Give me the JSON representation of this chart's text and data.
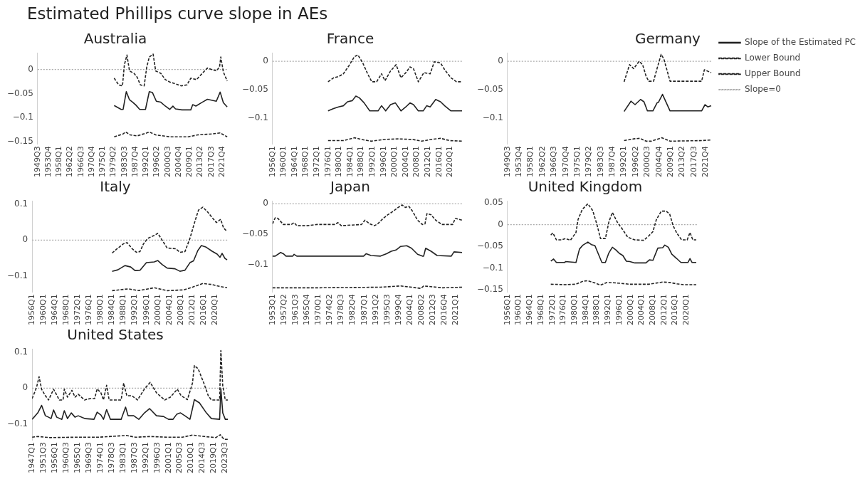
{
  "chart_data": [
    {
      "type": "line",
      "title": "Australia",
      "annotations": [
        "Estimated Phillips curve slope in AEs"
      ],
      "xlim": [
        "1949-07",
        "2024-01"
      ],
      "ylim": [
        -0.155,
        0.035
      ],
      "yticks": [
        0,
        -0.05,
        -0.1,
        -0.15
      ],
      "xticks": [
        {
          "value": "1949-07",
          "label": "1949Q3"
        },
        {
          "value": "1953-10",
          "label": "1953Q4"
        },
        {
          "value": "1958-01",
          "label": "1958Q1"
        },
        {
          "value": "1962-04",
          "label": "1962Q2"
        },
        {
          "value": "1966-07",
          "label": "1966Q3"
        },
        {
          "value": "1970-10",
          "label": "1970Q4"
        },
        {
          "value": "1975-01",
          "label": "1975Q1"
        },
        {
          "value": "1979-04",
          "label": "1979Q2"
        },
        {
          "value": "1983-07",
          "label": "1983Q3"
        },
        {
          "value": "1987-10",
          "label": "1987Q4"
        },
        {
          "value": "1992-01",
          "label": "1992Q1"
        },
        {
          "value": "1996-04",
          "label": "1996Q2"
        },
        {
          "value": "2000-07",
          "label": "2000Q3"
        },
        {
          "value": "2004-10",
          "label": "2004Q4"
        },
        {
          "value": "2009-01",
          "label": "2009Q1"
        },
        {
          "value": "2013-04",
          "label": "2013Q2"
        },
        {
          "value": "2017-07",
          "label": "2017Q3"
        },
        {
          "value": "2021-10",
          "label": "2021Q4"
        }
      ],
      "ref_lines": [
        {
          "axis": "y",
          "value": 0,
          "color": "#aaaaaa",
          "line_style": "dotted"
        }
      ],
      "series": [
        {
          "color": "#222222",
          "line_style": "solid",
          "x": [
            "1979-07",
            "1982-04",
            "1983-01",
            "1984-04",
            "1985-07",
            "1986-10",
            "1988-01",
            "1989-07",
            "1991-10",
            "1993-04",
            "1994-07",
            "1996-01",
            "1997-10",
            "1999-07",
            "2001-04",
            "2002-07",
            "2003-07",
            "2006-01",
            "2009-07",
            "2010-04",
            "2011-07",
            "2014-01",
            "2016-01",
            "2019-07",
            "2021-01",
            "2022-04",
            "2023-10"
          ],
          "values": [
            -0.075,
            -0.083,
            -0.083,
            -0.046,
            -0.063,
            -0.068,
            -0.074,
            -0.083,
            -0.083,
            -0.046,
            -0.048,
            -0.066,
            -0.068,
            -0.076,
            -0.083,
            -0.076,
            -0.082,
            -0.084,
            -0.084,
            -0.073,
            -0.076,
            -0.068,
            -0.062,
            -0.066,
            -0.047,
            -0.069,
            -0.078
          ]
        },
        {
          "color": "#222222",
          "line_style": "dashed",
          "x": [
            "1979-07",
            "1983-01",
            "1984-01",
            "1985-10",
            "1988-07",
            "1992-04",
            "1993-04",
            "1995-10",
            "2001-04",
            "2008-07",
            "2012-04",
            "2017-10",
            "2021-01",
            "2023-10"
          ],
          "values": [
            -0.14,
            -0.134,
            -0.13,
            -0.136,
            -0.138,
            -0.132,
            -0.13,
            -0.136,
            -0.14,
            -0.14,
            -0.136,
            -0.134,
            -0.132,
            -0.14
          ]
        },
        {
          "color": "#222222",
          "line_style": "dashed",
          "x": [
            "1979-07",
            "1981-04",
            "1982-10",
            "1983-07",
            "1984-07",
            "1985-07",
            "1987-04",
            "1988-07",
            "1989-10",
            "1991-04",
            "1992-04",
            "1993-04",
            "1994-10",
            "1995-10",
            "1997-10",
            "1999-07",
            "2001-04",
            "2003-01",
            "2005-10",
            "2008-01",
            "2009-07",
            "2011-10",
            "2014-01",
            "2016-01",
            "2017-10",
            "2019-07",
            "2020-10",
            "2021-04",
            "2022-04",
            "2023-10"
          ],
          "values": [
            -0.018,
            -0.032,
            -0.034,
            0.01,
            0.03,
            -0.003,
            -0.008,
            -0.016,
            -0.032,
            -0.034,
            0.005,
            0.026,
            0.032,
            -0.003,
            -0.008,
            -0.021,
            -0.026,
            -0.029,
            -0.034,
            -0.032,
            -0.018,
            -0.021,
            -0.008,
            0.003,
            0,
            -0.003,
            0.005,
            0.026,
            -0.005,
            -0.024
          ]
        }
      ]
    },
    {
      "type": "line",
      "title": "France",
      "xlim": [
        "1956-01",
        "2024-07"
      ],
      "ylim": [
        -0.145,
        0.015
      ],
      "yticks": [
        0,
        -0.05,
        -0.1
      ],
      "xticks": [
        {
          "value": "1956-01",
          "label": "1956Q1"
        },
        {
          "value": "1960-01",
          "label": "1960Q1"
        },
        {
          "value": "1964-01",
          "label": "1964Q1"
        },
        {
          "value": "1968-01",
          "label": "1968Q1"
        },
        {
          "value": "1972-01",
          "label": "1972Q1"
        },
        {
          "value": "1976-01",
          "label": "1976Q1"
        },
        {
          "value": "1980-01",
          "label": "1980Q1"
        },
        {
          "value": "1984-01",
          "label": "1984Q1"
        },
        {
          "value": "1988-01",
          "label": "1988Q1"
        },
        {
          "value": "1992-01",
          "label": "1992Q1"
        },
        {
          "value": "1996-01",
          "label": "1996Q1"
        },
        {
          "value": "2000-01",
          "label": "2000Q1"
        },
        {
          "value": "2004-01",
          "label": "2004Q1"
        },
        {
          "value": "2008-01",
          "label": "2008Q1"
        },
        {
          "value": "2012-01",
          "label": "2012Q1"
        },
        {
          "value": "2016-01",
          "label": "2016Q1"
        },
        {
          "value": "2020-01",
          "label": "2020Q1"
        }
      ],
      "ref_lines": [
        {
          "axis": "y",
          "value": 0,
          "color": "#aaaaaa",
          "line_style": "dotted"
        }
      ],
      "series": [
        {
          "color": "#222222",
          "line_style": "solid",
          "x": [
            "1976-01",
            "1978-01",
            "1979-10",
            "1981-07",
            "1983-01",
            "1984-10",
            "1986-01",
            "1987-04",
            "1989-01",
            "1991-01",
            "1994-01",
            "1995-04",
            "1996-10",
            "1998-07",
            "2000-04",
            "2002-04",
            "2004-01",
            "2005-07",
            "2006-10",
            "2008-07",
            "2010-04",
            "2011-07",
            "2012-10",
            "2014-10",
            "2016-07",
            "2018-01",
            "2020-04",
            "2024-04"
          ],
          "values": [
            -0.087,
            -0.083,
            -0.08,
            -0.078,
            -0.071,
            -0.069,
            -0.061,
            -0.064,
            -0.073,
            -0.087,
            -0.087,
            -0.078,
            -0.087,
            -0.076,
            -0.073,
            -0.087,
            -0.08,
            -0.073,
            -0.076,
            -0.087,
            -0.087,
            -0.078,
            -0.08,
            -0.067,
            -0.071,
            -0.078,
            -0.087,
            -0.087
          ]
        },
        {
          "color": "#222222",
          "line_style": "dashed",
          "x": [
            "1976-01",
            "1981-07",
            "1985-07",
            "1988-01",
            "1991-07",
            "1996-07",
            "2001-07",
            "2006-07",
            "2009-10",
            "2013-01",
            "2016-07",
            "2019-10",
            "2024-04"
          ],
          "values": [
            -0.139,
            -0.139,
            -0.134,
            -0.137,
            -0.14,
            -0.137,
            -0.136,
            -0.137,
            -0.14,
            -0.137,
            -0.135,
            -0.139,
            -0.14
          ]
        },
        {
          "color": "#222222",
          "line_style": "dashed",
          "x": [
            "1976-01",
            "1978-01",
            "1979-10",
            "1981-07",
            "1983-07",
            "1985-07",
            "1986-10",
            "1988-07",
            "1990-04",
            "1991-10",
            "1993-07",
            "1995-04",
            "1996-07",
            "1998-07",
            "2000-07",
            "2002-04",
            "2004-01",
            "2005-07",
            "2006-10",
            "2008-07",
            "2010-07",
            "2012-10",
            "2014-04",
            "2016-07",
            "2018-01",
            "2020-04",
            "2022-04",
            "2024-04"
          ],
          "values": [
            -0.036,
            -0.029,
            -0.027,
            -0.022,
            -0.008,
            0.008,
            0.011,
            -0.003,
            -0.022,
            -0.036,
            -0.036,
            -0.022,
            -0.034,
            -0.017,
            -0.006,
            -0.029,
            -0.02,
            -0.01,
            -0.013,
            -0.036,
            -0.02,
            -0.022,
            -0.001,
            -0.003,
            -0.015,
            -0.029,
            -0.036,
            -0.036
          ]
        }
      ]
    },
    {
      "type": "line",
      "title": "Germany",
      "legend": "right",
      "xlim": [
        "1949-07",
        "2024-01"
      ],
      "ylim": [
        -0.145,
        0.015
      ],
      "yticks": [
        0,
        -0.05,
        -0.1
      ],
      "xticks": [
        {
          "value": "1949-07",
          "label": "1949Q3"
        },
        {
          "value": "1953-10",
          "label": "1953Q4"
        },
        {
          "value": "1958-01",
          "label": "1958Q1"
        },
        {
          "value": "1962-04",
          "label": "1962Q2"
        },
        {
          "value": "1966-07",
          "label": "1966Q3"
        },
        {
          "value": "1970-10",
          "label": "1970Q4"
        },
        {
          "value": "1975-01",
          "label": "1975Q1"
        },
        {
          "value": "1979-04",
          "label": "1979Q2"
        },
        {
          "value": "1983-07",
          "label": "1983Q3"
        },
        {
          "value": "1987-10",
          "label": "1987Q4"
        },
        {
          "value": "1992-01",
          "label": "1992Q1"
        },
        {
          "value": "1996-04",
          "label": "1996Q2"
        },
        {
          "value": "2000-07",
          "label": "2000Q3"
        },
        {
          "value": "2004-10",
          "label": "2004Q4"
        },
        {
          "value": "2009-01",
          "label": "2009Q1"
        },
        {
          "value": "2013-04",
          "label": "2013Q2"
        },
        {
          "value": "2017-07",
          "label": "2017Q3"
        },
        {
          "value": "2021-10",
          "label": "2021Q4"
        }
      ],
      "ref_lines": [
        {
          "axis": "y",
          "value": 0,
          "label": "Slope=0",
          "color": "#aaaaaa",
          "line_style": "dotted"
        }
      ],
      "series": [
        {
          "name": "Slope of the Estimated PC",
          "color": "#222222",
          "line_style": "solid",
          "x": [
            "1992-01",
            "1994-07",
            "1996-01",
            "1998-01",
            "1999-04",
            "2000-07",
            "2002-07",
            "2004-01",
            "2004-07",
            "2006-01",
            "2008-10",
            "2020-04",
            "2021-07",
            "2022-07",
            "2023-10"
          ],
          "values": [
            -0.088,
            -0.07,
            -0.076,
            -0.067,
            -0.071,
            -0.087,
            -0.087,
            -0.073,
            -0.072,
            -0.058,
            -0.087,
            -0.087,
            -0.076,
            -0.08,
            -0.078
          ]
        },
        {
          "name": "Lower Bound",
          "color": "#222222",
          "line_style": "dashed",
          "x": [
            "1992-01",
            "1995-07",
            "1997-10",
            "2000-01",
            "2002-01",
            "2005-10",
            "2008-10",
            "2020-04",
            "2023-10"
          ],
          "values": [
            -0.139,
            -0.136,
            -0.135,
            -0.14,
            -0.14,
            -0.134,
            -0.14,
            -0.139,
            -0.138
          ]
        },
        {
          "name": "Upper Bound",
          "color": "#222222",
          "line_style": "dashed",
          "x": [
            "1992-01",
            "1994-01",
            "1995-07",
            "1997-07",
            "1998-10",
            "2000-01",
            "2001-01",
            "2002-10",
            "2004-01",
            "2005-07",
            "2006-07",
            "2008-10",
            "2020-04",
            "2021-04",
            "2023-10"
          ],
          "values": [
            -0.036,
            -0.006,
            -0.013,
            0,
            -0.006,
            -0.026,
            -0.035,
            -0.035,
            -0.013,
            0.012,
            0.004,
            -0.035,
            -0.035,
            -0.015,
            -0.02
          ]
        }
      ]
    },
    {
      "type": "line",
      "title": "Italy",
      "xlim": [
        "1956-01",
        "2024-07"
      ],
      "ylim": [
        -0.145,
        0.11
      ],
      "yticks": [
        0.1,
        0,
        -0.1
      ],
      "xticks": [
        {
          "value": "1956-01",
          "label": "1956Q1"
        },
        {
          "value": "1960-01",
          "label": "1960Q1"
        },
        {
          "value": "1964-01",
          "label": "1964Q1"
        },
        {
          "value": "1968-01",
          "label": "1968Q1"
        },
        {
          "value": "1972-01",
          "label": "1972Q1"
        },
        {
          "value": "1976-01",
          "label": "1976Q1"
        },
        {
          "value": "1980-01",
          "label": "1980Q1"
        },
        {
          "value": "1984-01",
          "label": "1984Q1"
        },
        {
          "value": "1988-01",
          "label": "1988Q1"
        },
        {
          "value": "1992-01",
          "label": "1992Q1"
        },
        {
          "value": "1996-01",
          "label": "1996Q1"
        },
        {
          "value": "2000-01",
          "label": "2000Q1"
        },
        {
          "value": "2004-01",
          "label": "2004Q1"
        },
        {
          "value": "2008-01",
          "label": "2008Q1"
        },
        {
          "value": "2012-01",
          "label": "2012Q1"
        },
        {
          "value": "2016-01",
          "label": "2016Q1"
        },
        {
          "value": "2020-01",
          "label": "2020Q1"
        }
      ],
      "ref_lines": [
        {
          "axis": "y",
          "value": 0,
          "color": "#aaaaaa",
          "line_style": "dotted"
        }
      ],
      "series": [
        {
          "color": "#222222",
          "line_style": "solid",
          "x": [
            "1984-01",
            "1986-01",
            "1988-07",
            "1990-07",
            "1992-01",
            "1993-10",
            "1996-01",
            "1998-10",
            "2000-01",
            "2001-07",
            "2003-04",
            "2006-01",
            "2007-10",
            "2009-07",
            "2011-04",
            "2012-07",
            "2014-01",
            "2015-04",
            "2016-10",
            "2019-01",
            "2020-10",
            "2021-10",
            "2022-07",
            "2023-07",
            "2024-04"
          ],
          "values": [
            -0.087,
            -0.083,
            -0.071,
            -0.075,
            -0.085,
            -0.084,
            -0.063,
            -0.061,
            -0.057,
            -0.068,
            -0.078,
            -0.08,
            -0.087,
            -0.084,
            -0.063,
            -0.058,
            -0.029,
            -0.015,
            -0.019,
            -0.031,
            -0.039,
            -0.048,
            -0.037,
            -0.051,
            -0.055
          ]
        },
        {
          "color": "#222222",
          "line_style": "dashed",
          "x": [
            "1984-01",
            "1989-10",
            "1993-04",
            "1998-10",
            "2003-04",
            "2009-01",
            "2012-04",
            "2015-10",
            "2019-01",
            "2021-07",
            "2024-04"
          ],
          "values": [
            -0.141,
            -0.136,
            -0.141,
            -0.133,
            -0.141,
            -0.139,
            -0.131,
            -0.121,
            -0.124,
            -0.129,
            -0.133
          ]
        },
        {
          "color": "#222222",
          "line_style": "dashed",
          "x": [
            "1984-01",
            "1985-10",
            "1988-01",
            "1989-04",
            "1991-01",
            "1992-07",
            "1993-10",
            "1995-01",
            "1996-07",
            "1998-10",
            "2000-01",
            "2001-07",
            "2003-04",
            "2006-04",
            "2007-10",
            "2009-07",
            "2011-04",
            "2013-01",
            "2014-04",
            "2015-10",
            "2017-07",
            "2019-01",
            "2020-07",
            "2022-01",
            "2023-01",
            "2024-04"
          ],
          "values": [
            -0.036,
            -0.024,
            -0.01,
            -0.007,
            -0.024,
            -0.034,
            -0.032,
            -0.01,
            0.005,
            0.013,
            0.019,
            0,
            -0.022,
            -0.024,
            -0.034,
            -0.032,
            0.005,
            0.053,
            0.084,
            0.092,
            0.078,
            0.063,
            0.049,
            0.058,
            0.034,
            0.024
          ]
        }
      ]
    },
    {
      "type": "line",
      "title": "Japan",
      "xlim": [
        "1953-01",
        "2023-07"
      ],
      "ylim": [
        -0.145,
        0.005
      ],
      "yticks": [
        0,
        -0.05,
        -0.1
      ],
      "xticks": [
        {
          "value": "1953-01",
          "label": "1953Q1"
        },
        {
          "value": "1957-04",
          "label": "1957Q2"
        },
        {
          "value": "1961-07",
          "label": "1961Q3"
        },
        {
          "value": "1965-10",
          "label": "1965Q4"
        },
        {
          "value": "1970-01",
          "label": "1970Q1"
        },
        {
          "value": "1974-04",
          "label": "1974Q2"
        },
        {
          "value": "1978-07",
          "label": "1978Q3"
        },
        {
          "value": "1982-10",
          "label": "1982Q4"
        },
        {
          "value": "1987-01",
          "label": "1987Q1"
        },
        {
          "value": "1991-04",
          "label": "1991Q2"
        },
        {
          "value": "1995-07",
          "label": "1995Q3"
        },
        {
          "value": "1999-10",
          "label": "1999Q4"
        },
        {
          "value": "2004-01",
          "label": "2004Q1"
        },
        {
          "value": "2008-04",
          "label": "2008Q2"
        },
        {
          "value": "2012-07",
          "label": "2012Q3"
        },
        {
          "value": "2016-10",
          "label": "2016Q4"
        },
        {
          "value": "2021-01",
          "label": "2021Q1"
        }
      ],
      "ref_lines": [
        {
          "axis": "y",
          "value": 0,
          "color": "#aaaaaa",
          "line_style": "dotted"
        }
      ],
      "series": [
        {
          "color": "#222222",
          "line_style": "solid",
          "x": [
            "1953-01",
            "1954-01",
            "1956-01",
            "1957-01",
            "1958-01",
            "1960-07",
            "1961-01",
            "1962-01",
            "1986-10",
            "1987-10",
            "1989-07",
            "1993-01",
            "1995-04",
            "1997-01",
            "1998-10",
            "2000-07",
            "2002-10",
            "2004-07",
            "2006-10",
            "2008-07",
            "2009-01",
            "2009-10",
            "2011-10",
            "2014-01",
            "2019-04",
            "2020-04",
            "2023-04"
          ],
          "values": [
            -0.086,
            -0.086,
            -0.08,
            -0.082,
            -0.086,
            -0.086,
            -0.083,
            -0.086,
            -0.086,
            -0.082,
            -0.085,
            -0.086,
            -0.082,
            -0.078,
            -0.076,
            -0.07,
            -0.069,
            -0.073,
            -0.083,
            -0.086,
            -0.086,
            -0.073,
            -0.078,
            -0.085,
            -0.086,
            -0.079,
            -0.08
          ]
        },
        {
          "color": "#222222",
          "line_style": "dashed",
          "x": [
            "1953-01",
            "1970-01",
            "1993-01",
            "2000-07",
            "2004-07",
            "2008-01",
            "2009-01",
            "2016-01",
            "2023-04"
          ],
          "values": [
            -0.138,
            -0.138,
            -0.137,
            -0.135,
            -0.137,
            -0.139,
            -0.135,
            -0.138,
            -0.137
          ]
        },
        {
          "color": "#222222",
          "line_style": "dashed",
          "x": [
            "1953-01",
            "1954-01",
            "1955-01",
            "1957-01",
            "1957-07",
            "1960-01",
            "1961-01",
            "1962-01",
            "1966-01",
            "1969-07",
            "1976-01",
            "1977-04",
            "1978-07",
            "1986-01",
            "1987-04",
            "1989-01",
            "1990-10",
            "1992-01",
            "1994-01",
            "1995-10",
            "1997-07",
            "1999-04",
            "2001-01",
            "2002-04",
            "2003-07",
            "2005-01",
            "2006-10",
            "2008-07",
            "2009-07",
            "2010-04",
            "2011-10",
            "2013-07",
            "2015-10",
            "2019-10",
            "2020-10",
            "2023-04"
          ],
          "values": [
            -0.033,
            -0.023,
            -0.024,
            -0.034,
            -0.034,
            -0.034,
            -0.031,
            -0.036,
            -0.036,
            -0.034,
            -0.034,
            -0.031,
            -0.036,
            -0.034,
            -0.027,
            -0.033,
            -0.036,
            -0.033,
            -0.024,
            -0.018,
            -0.013,
            -0.007,
            -0.002,
            -0.006,
            -0.004,
            -0.013,
            -0.027,
            -0.034,
            -0.033,
            -0.016,
            -0.018,
            -0.027,
            -0.034,
            -0.034,
            -0.024,
            -0.027
          ]
        }
      ]
    },
    {
      "type": "line",
      "title": "United Kingdom",
      "xlim": [
        "1956-01",
        "2024-01"
      ],
      "ylim": [
        -0.155,
        0.055
      ],
      "yticks": [
        0.05,
        0,
        -0.05,
        -0.1,
        -0.15
      ],
      "xticks": [
        {
          "value": "1956-01",
          "label": "1956Q1"
        },
        {
          "value": "1960-01",
          "label": "1960Q1"
        },
        {
          "value": "1964-01",
          "label": "1964Q1"
        },
        {
          "value": "1968-01",
          "label": "1968Q1"
        },
        {
          "value": "1972-01",
          "label": "1972Q1"
        },
        {
          "value": "1976-01",
          "label": "1976Q1"
        },
        {
          "value": "1980-01",
          "label": "1980Q1"
        },
        {
          "value": "1984-01",
          "label": "1984Q1"
        },
        {
          "value": "1988-01",
          "label": "1988Q1"
        },
        {
          "value": "1992-01",
          "label": "1992Q1"
        },
        {
          "value": "1996-01",
          "label": "1996Q1"
        },
        {
          "value": "2000-01",
          "label": "2000Q1"
        },
        {
          "value": "2004-01",
          "label": "2004Q1"
        },
        {
          "value": "2008-01",
          "label": "2008Q1"
        },
        {
          "value": "2012-01",
          "label": "2012Q1"
        },
        {
          "value": "2016-01",
          "label": "2016Q1"
        },
        {
          "value": "2020-01",
          "label": "2020Q1"
        }
      ],
      "ref_lines": [
        {
          "axis": "y",
          "value": 0,
          "color": "#aaaaaa",
          "line_style": "dotted"
        }
      ],
      "series": [
        {
          "color": "#222222",
          "line_style": "solid",
          "x": [
            "1971-07",
            "1972-07",
            "1973-07",
            "1976-07",
            "1976-10",
            "1980-07",
            "1981-10",
            "1983-01",
            "1984-10",
            "1986-01",
            "1987-04",
            "1989-10",
            "1991-01",
            "1992-04",
            "1993-07",
            "1994-10",
            "1996-01",
            "1997-04",
            "1998-07",
            "1999-10",
            "2001-07",
            "2005-07",
            "2006-10",
            "2008-01",
            "2009-10",
            "2011-07",
            "2012-04",
            "2013-07",
            "2014-10",
            "2016-07",
            "2018-01",
            "2020-07",
            "2021-04",
            "2022-01",
            "2023-07"
          ],
          "values": [
            -0.084,
            -0.079,
            -0.087,
            -0.087,
            -0.085,
            -0.087,
            -0.056,
            -0.047,
            -0.04,
            -0.046,
            -0.048,
            -0.087,
            -0.087,
            -0.065,
            -0.052,
            -0.058,
            -0.066,
            -0.071,
            -0.084,
            -0.085,
            -0.088,
            -0.088,
            -0.081,
            -0.082,
            -0.054,
            -0.053,
            -0.047,
            -0.052,
            -0.068,
            -0.078,
            -0.087,
            -0.087,
            -0.078,
            -0.087,
            -0.087
          ]
        },
        {
          "color": "#222222",
          "line_style": "dashed",
          "x": [
            "1971-07",
            "1976-07",
            "1980-07",
            "1983-01",
            "1984-10",
            "1987-04",
            "1989-04",
            "1991-07",
            "1994-10",
            "1999-10",
            "2006-07",
            "2011-07",
            "2014-01",
            "2016-07",
            "2019-01",
            "2023-07"
          ],
          "values": [
            -0.137,
            -0.138,
            -0.137,
            -0.13,
            -0.129,
            -0.134,
            -0.139,
            -0.133,
            -0.134,
            -0.137,
            -0.137,
            -0.132,
            -0.133,
            -0.136,
            -0.138,
            -0.138
          ]
        },
        {
          "color": "#222222",
          "line_style": "dashed",
          "x": [
            "1971-07",
            "1972-04",
            "1973-07",
            "1975-04",
            "1976-10",
            "1978-07",
            "1980-07",
            "1981-04",
            "1982-10",
            "1984-10",
            "1986-07",
            "1988-01",
            "1989-04",
            "1991-01",
            "1992-04",
            "1993-07",
            "1995-04",
            "1997-04",
            "1999-01",
            "2001-07",
            "2004-10",
            "2006-07",
            "2008-01",
            "2009-04",
            "2011-01",
            "2012-10",
            "2014-01",
            "2015-04",
            "2016-07",
            "2018-04",
            "2020-04",
            "2021-04",
            "2022-04",
            "2023-07"
          ],
          "values": [
            -0.024,
            -0.019,
            -0.035,
            -0.035,
            -0.032,
            -0.036,
            -0.018,
            0.012,
            0.035,
            0.048,
            0.032,
            0,
            -0.032,
            -0.032,
            0.006,
            0.028,
            0.006,
            -0.012,
            -0.029,
            -0.035,
            -0.036,
            -0.026,
            -0.016,
            0.012,
            0.031,
            0.031,
            0.024,
            -0.003,
            -0.019,
            -0.035,
            -0.035,
            -0.018,
            -0.035,
            -0.035
          ]
        }
      ]
    },
    {
      "type": "line",
      "title": "United States",
      "xlim": [
        "1947-01",
        "2024-07"
      ],
      "ylim": [
        -0.145,
        0.11
      ],
      "yticks": [
        0.1,
        0,
        -0.1
      ],
      "xticks": [
        {
          "value": "1947-01",
          "label": "1947Q1"
        },
        {
          "value": "1951-07",
          "label": "1951Q3"
        },
        {
          "value": "1956-01",
          "label": "1956Q1"
        },
        {
          "value": "1960-07",
          "label": "1960Q3"
        },
        {
          "value": "1965-01",
          "label": "1965Q1"
        },
        {
          "value": "1969-07",
          "label": "1969Q3"
        },
        {
          "value": "1974-01",
          "label": "1974Q1"
        },
        {
          "value": "1978-07",
          "label": "1978Q3"
        },
        {
          "value": "1983-01",
          "label": "1983Q1"
        },
        {
          "value": "1987-07",
          "label": "1987Q3"
        },
        {
          "value": "1992-01",
          "label": "1992Q1"
        },
        {
          "value": "1996-07",
          "label": "1996Q3"
        },
        {
          "value": "2001-01",
          "label": "2001Q1"
        },
        {
          "value": "2005-07",
          "label": "2005Q3"
        },
        {
          "value": "2010-01",
          "label": "2010Q1"
        },
        {
          "value": "2014-07",
          "label": "2014Q3"
        },
        {
          "value": "2019-01",
          "label": "2019Q1"
        },
        {
          "value": "2023-07",
          "label": "2023Q3"
        }
      ],
      "ref_lines": [
        {
          "axis": "y",
          "value": 0,
          "color": "#aaaaaa",
          "line_style": "dotted"
        }
      ],
      "series": [
        {
          "color": "#222222",
          "line_style": "solid",
          "x": [
            "1947-01",
            "1949-04",
            "1950-10",
            "1952-04",
            "1953-07",
            "1954-07",
            "1955-07",
            "1956-10",
            "1958-10",
            "1959-10",
            "1961-01",
            "1962-07",
            "1964-01",
            "1965-04",
            "1968-01",
            "1971-07",
            "1972-10",
            "1974-04",
            "1975-04",
            "1976-07",
            "1978-01",
            "1982-04",
            "1984-01",
            "1985-01",
            "1987-04",
            "1989-04",
            "1991-07",
            "1993-07",
            "1996-04",
            "1999-01",
            "2001-01",
            "2002-10",
            "2004-04",
            "2005-10",
            "2007-07",
            "2009-07",
            "2010-07",
            "2011-04",
            "2013-04",
            "2016-01",
            "2018-01",
            "2021-04",
            "2021-10",
            "2022-07",
            "2023-07",
            "2024-07"
          ],
          "values": [
            -0.087,
            -0.069,
            -0.048,
            -0.077,
            -0.081,
            -0.085,
            -0.061,
            -0.081,
            -0.087,
            -0.063,
            -0.085,
            -0.069,
            -0.081,
            -0.077,
            -0.085,
            -0.087,
            -0.067,
            -0.075,
            -0.087,
            -0.06,
            -0.087,
            -0.087,
            -0.053,
            -0.077,
            -0.077,
            -0.087,
            -0.069,
            -0.057,
            -0.077,
            -0.079,
            -0.087,
            -0.087,
            -0.073,
            -0.069,
            -0.077,
            -0.087,
            -0.057,
            -0.032,
            -0.041,
            -0.069,
            -0.085,
            -0.087,
            -0.002,
            -0.069,
            -0.087,
            -0.087
          ]
        },
        {
          "color": "#222222",
          "line_style": "dashed",
          "x": [
            "1947-01",
            "1949-04",
            "1954-01",
            "1963-07",
            "1973-01",
            "1984-04",
            "1988-01",
            "1993-07",
            "2001-01",
            "2006-07",
            "2010-07",
            "2015-04",
            "2019-10",
            "2021-07",
            "2023-01",
            "2024-07"
          ],
          "values": [
            -0.137,
            -0.135,
            -0.138,
            -0.137,
            -0.137,
            -0.132,
            -0.137,
            -0.135,
            -0.137,
            -0.137,
            -0.131,
            -0.135,
            -0.138,
            -0.13,
            -0.143,
            -0.143
          ]
        },
        {
          "color": "#222222",
          "line_style": "dashed",
          "x": [
            "1947-01",
            "1948-10",
            "1949-10",
            "1950-10",
            "1952-04",
            "1953-07",
            "1955-07",
            "1956-07",
            "1957-10",
            "1959-04",
            "1959-10",
            "1961-01",
            "1962-10",
            "1964-01",
            "1965-04",
            "1967-10",
            "1970-01",
            "1971-10",
            "1972-10",
            "1974-04",
            "1975-04",
            "1976-07",
            "1977-07",
            "1982-04",
            "1983-04",
            "1984-07",
            "1986-07",
            "1988-10",
            "1991-07",
            "1993-10",
            "1996-04",
            "1999-07",
            "2001-10",
            "2004-07",
            "2006-01",
            "2008-07",
            "2010-07",
            "2011-04",
            "2012-10",
            "2015-01",
            "2016-10",
            "2018-01",
            "2021-04",
            "2021-10",
            "2022-07",
            "2023-07",
            "2024-07"
          ],
          "values": [
            -0.029,
            0.002,
            0.032,
            -0.003,
            -0.021,
            -0.033,
            -0.003,
            -0.016,
            -0.033,
            -0.033,
            -0.003,
            -0.025,
            -0.006,
            -0.025,
            -0.017,
            -0.033,
            -0.029,
            -0.029,
            -0.002,
            -0.013,
            -0.033,
            0.008,
            -0.033,
            -0.033,
            0.014,
            -0.021,
            -0.021,
            -0.033,
            -0.002,
            0.016,
            -0.013,
            -0.033,
            -0.025,
            -0.003,
            -0.021,
            -0.032,
            0.014,
            0.063,
            0.054,
            0.014,
            -0.021,
            -0.033,
            -0.033,
            0.105,
            0.006,
            -0.033,
            -0.033
          ]
        }
      ]
    }
  ]
}
